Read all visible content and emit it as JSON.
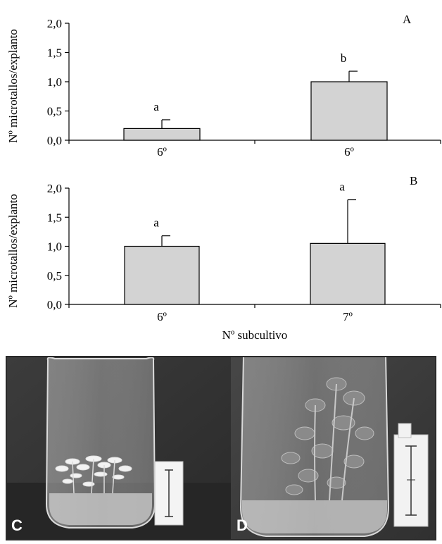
{
  "chart_data": [
    {
      "type": "bar",
      "panel_label": "A",
      "categories": [
        "6º",
        "6º"
      ],
      "values": [
        0.2,
        1.0
      ],
      "error_bars": [
        0.15,
        0.18
      ],
      "letters": [
        "a",
        "b"
      ],
      "ylabel": "Nº microtallos/explanto",
      "xlabel": "",
      "yticks": [
        "0,0",
        "0,5",
        "1,0",
        "1,5",
        "2,0"
      ],
      "ylim": [
        0,
        2.0
      ],
      "bar_color": "#d3d3d3",
      "grid": false
    },
    {
      "type": "bar",
      "panel_label": "B",
      "categories": [
        "6º",
        "7º"
      ],
      "values": [
        1.0,
        1.05
      ],
      "error_bars": [
        0.18,
        0.75
      ],
      "letters": [
        "a",
        "a"
      ],
      "ylabel": "Nº microtallos/explanto",
      "xlabel": "Nº subcultivo",
      "yticks": [
        "0,0",
        "0,5",
        "1,0",
        "1,5",
        "2,0"
      ],
      "ylim": [
        0,
        2.0
      ],
      "bar_color": "#d3d3d3",
      "grid": false
    }
  ],
  "photos": {
    "left_label": "C",
    "right_label": "D"
  }
}
